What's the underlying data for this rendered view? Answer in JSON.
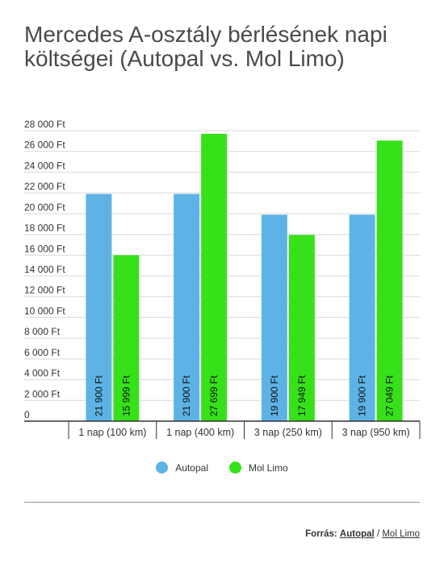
{
  "title": "Mercedes A-osztály bérlésének napi költségei (Autopal vs. Mol Limo)",
  "chart_data": {
    "type": "bar",
    "categories": [
      "1 nap (100 km)",
      "1 nap (400 km)",
      "3 nap (250 km)",
      "3 nap (950 km)"
    ],
    "series": [
      {
        "name": "Autopal",
        "color": "#5db3e5",
        "values": [
          21900,
          21900,
          19900,
          19900
        ],
        "labels": [
          "21 900 Ft",
          "21 900 Ft",
          "19 900 Ft",
          "19 900 Ft"
        ]
      },
      {
        "name": "Mol Limo",
        "color": "#37e11a",
        "values": [
          15999,
          27699,
          17949,
          27049
        ],
        "labels": [
          "15 999 Ft",
          "27 699 Ft",
          "17 949 Ft",
          "27 049 Ft"
        ]
      }
    ],
    "ylim": [
      0,
      28000
    ],
    "yticks": [
      0,
      2000,
      4000,
      6000,
      8000,
      10000,
      12000,
      14000,
      16000,
      18000,
      20000,
      22000,
      24000,
      26000,
      28000
    ],
    "ytick_labels": [
      "0",
      "2 000 Ft",
      "4 000 Ft",
      "6 000 Ft",
      "8 000 Ft",
      "10 000 Ft",
      "12 000 Ft",
      "14 000 Ft",
      "16 000 Ft",
      "18 000 Ft",
      "20 000 Ft",
      "22 000 Ft",
      "24 000 Ft",
      "26 000 Ft",
      "28 000 Ft"
    ],
    "grid": true,
    "legend_position": "bottom-center"
  },
  "source": {
    "label": "Forrás:",
    "link1": "Autopal",
    "separator": "/",
    "link2": "Mol Limo"
  }
}
